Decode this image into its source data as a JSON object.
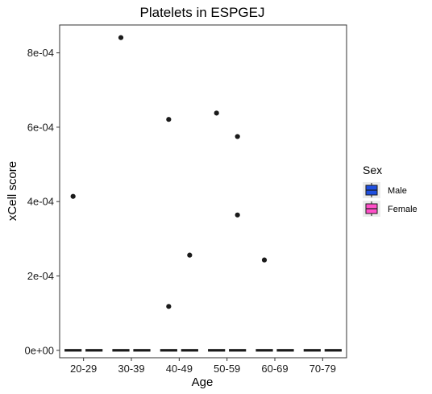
{
  "chart_data": {
    "type": "boxplot",
    "title": "Platelets in ESPGEJ",
    "xlabel": "Age",
    "ylabel": "xCell score",
    "categories": [
      "20-29",
      "30-39",
      "40-49",
      "50-59",
      "60-69",
      "70-79"
    ],
    "ylim": [
      -2e-05,
      0.000875
    ],
    "yticks": [
      0,
      0.0002,
      0.0004,
      0.0006,
      0.0008
    ],
    "ytick_labels": [
      "0e+00",
      "2e-04",
      "4e-04",
      "6e-04",
      "8e-04"
    ],
    "grid": false,
    "legend": {
      "title": "Sex",
      "placement": "right",
      "entries": [
        {
          "label": "Male",
          "color": "#1f4fe0"
        },
        {
          "label": "Female",
          "color": "#ff4fc8"
        }
      ]
    },
    "series": [
      {
        "name": "Male",
        "color": "#1f4fe0",
        "boxes": [
          {
            "category": "20-29",
            "q1": 0,
            "median": 0,
            "q3": 0,
            "whisker_low": 0,
            "whisker_high": 0
          },
          {
            "category": "30-39",
            "q1": 0,
            "median": 0,
            "q3": 0,
            "whisker_low": 0,
            "whisker_high": 0
          },
          {
            "category": "40-49",
            "q1": 0,
            "median": 0,
            "q3": 0,
            "whisker_low": 0,
            "whisker_high": 0
          },
          {
            "category": "50-59",
            "q1": 0,
            "median": 0,
            "q3": 0,
            "whisker_low": 0,
            "whisker_high": 0
          },
          {
            "category": "60-69",
            "q1": 0,
            "median": 0,
            "q3": 0,
            "whisker_low": 0,
            "whisker_high": 0
          },
          {
            "category": "70-79",
            "q1": 0,
            "median": 0,
            "q3": 0,
            "whisker_low": 0,
            "whisker_high": 0
          }
        ],
        "outliers": [
          {
            "category": "20-29",
            "y": 0.000414
          },
          {
            "category": "30-39",
            "y": 0.000841
          },
          {
            "category": "40-49",
            "y": 0.000621
          },
          {
            "category": "40-49",
            "y": 0.000118
          },
          {
            "category": "50-59",
            "y": 0.000638
          },
          {
            "category": "60-69",
            "y": 0.000243
          }
        ]
      },
      {
        "name": "Female",
        "color": "#ff4fc8",
        "boxes": [
          {
            "category": "20-29",
            "q1": 0,
            "median": 0,
            "q3": 0,
            "whisker_low": 0,
            "whisker_high": 0
          },
          {
            "category": "30-39",
            "q1": 0,
            "median": 0,
            "q3": 0,
            "whisker_low": 0,
            "whisker_high": 0
          },
          {
            "category": "40-49",
            "q1": 0,
            "median": 0,
            "q3": 0,
            "whisker_low": 0,
            "whisker_high": 0
          },
          {
            "category": "50-59",
            "q1": 0,
            "median": 0,
            "q3": 0,
            "whisker_low": 0,
            "whisker_high": 0
          },
          {
            "category": "60-69",
            "q1": 0,
            "median": 0,
            "q3": 0,
            "whisker_low": 0,
            "whisker_high": 0
          },
          {
            "category": "70-79",
            "q1": 0,
            "median": 0,
            "q3": 0,
            "whisker_low": 0,
            "whisker_high": 0
          }
        ],
        "outliers": [
          {
            "category": "40-49",
            "y": 0.000256
          },
          {
            "category": "50-59",
            "y": 0.000575
          },
          {
            "category": "50-59",
            "y": 0.000364
          }
        ]
      }
    ]
  }
}
